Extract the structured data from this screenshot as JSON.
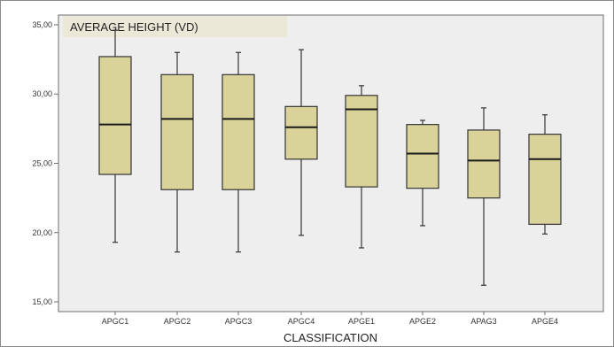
{
  "chart_data": {
    "type": "boxplot",
    "title": "AVERAGE HEIGHT (VD)",
    "xlabel": "CLASSIFICATION",
    "ylabel": "",
    "ylim": [
      14.3,
      35.7
    ],
    "yticks": [
      15,
      20,
      25,
      30,
      35
    ],
    "ytick_labels": [
      "15,00",
      "20,00",
      "25,00",
      "30,00",
      "35,00"
    ],
    "grid": false,
    "box_color": "#d9d39a",
    "plot_background": "#eeeeee",
    "title_background": "#ebe8d8",
    "categories": [
      "APGC1",
      "APGC2",
      "APGC3",
      "APGC4",
      "APGE1",
      "APGE2",
      "APAG3",
      "APGE4"
    ],
    "boxes": [
      {
        "min": 19.3,
        "q1": 24.2,
        "median": 27.8,
        "q3": 32.7,
        "max": 34.6
      },
      {
        "min": 18.6,
        "q1": 23.1,
        "median": 28.2,
        "q3": 31.4,
        "max": 33.0
      },
      {
        "min": 18.6,
        "q1": 23.1,
        "median": 28.2,
        "q3": 31.4,
        "max": 33.0
      },
      {
        "min": 19.8,
        "q1": 25.3,
        "median": 27.6,
        "q3": 29.1,
        "max": 33.2
      },
      {
        "min": 18.9,
        "q1": 23.3,
        "median": 28.9,
        "q3": 29.9,
        "max": 30.6
      },
      {
        "min": 20.5,
        "q1": 23.2,
        "median": 25.7,
        "q3": 27.8,
        "max": 28.1
      },
      {
        "min": 16.2,
        "q1": 22.5,
        "median": 25.2,
        "q3": 27.4,
        "max": 29.0
      },
      {
        "min": 19.9,
        "q1": 20.6,
        "median": 25.3,
        "q3": 27.1,
        "max": 28.5
      }
    ]
  }
}
